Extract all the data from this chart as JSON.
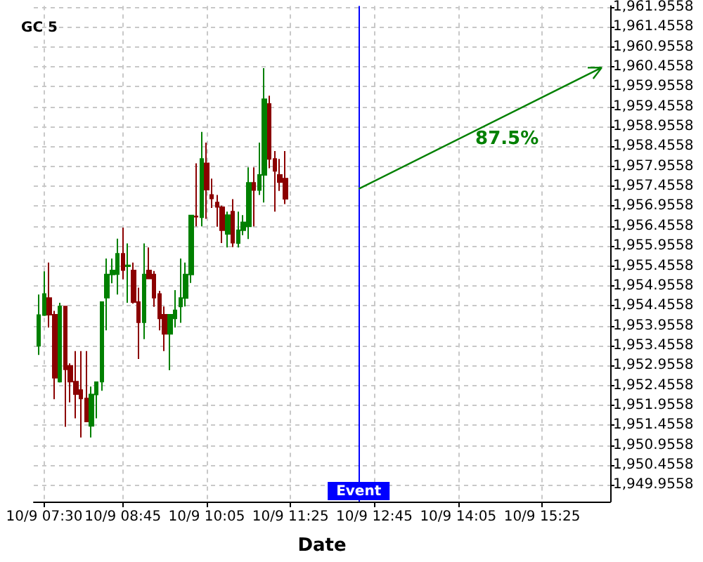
{
  "chart_data": {
    "type": "candlestick",
    "title": "GC 5",
    "xlabel": "Date",
    "x": [
      "--09-10T07:25",
      "--09-10T07:30",
      "--09-10T07:35",
      "--09-10T07:40",
      "--09-10T07:45",
      "--09-10T07:50",
      "--09-10T07:55",
      "--09-10T08:00",
      "--09-10T08:05",
      "--09-10T08:10",
      "--09-10T08:15",
      "--09-10T08:20",
      "--09-10T08:25",
      "--09-10T08:30",
      "--09-10T08:35",
      "--09-10T08:40",
      "--09-10T08:45",
      "--09-10T08:50",
      "--09-10T08:55",
      "--09-10T09:00",
      "--09-10T09:05",
      "--09-10T09:10",
      "--09-10T09:15",
      "--09-10T09:20",
      "--09-10T09:25",
      "--09-10T09:30",
      "--09-10T09:35",
      "--09-10T09:40",
      "--09-10T09:45",
      "--09-10T09:50",
      "--09-10T09:55",
      "--09-10T10:00",
      "--09-10T10:05",
      "--09-10T10:10",
      "--09-10T10:15",
      "--09-10T10:20",
      "--09-10T10:25",
      "--09-10T10:30",
      "--09-10T10:35",
      "--09-10T10:40",
      "--09-10T10:45",
      "--09-10T10:50",
      "--09-10T10:55",
      "--09-10T11:00",
      "--09-10T11:05",
      "--09-10T11:10",
      "--09-10T11:15",
      "--09-10T11:20"
    ],
    "ohlc": [
      [
        1953.45,
        1954.74,
        1953.22,
        1954.22
      ],
      [
        1954.22,
        1955.32,
        1954.2,
        1954.75
      ],
      [
        1954.65,
        1955.54,
        1953.91,
        1954.23
      ],
      [
        1954.23,
        1954.33,
        1952.11,
        1952.65
      ],
      [
        1952.55,
        1954.53,
        1952.53,
        1954.44
      ],
      [
        1954.44,
        1954.44,
        1951.42,
        1952.86
      ],
      [
        1952.95,
        1953.01,
        1952.03,
        1952.55
      ],
      [
        1952.55,
        1953.32,
        1951.63,
        1952.24
      ],
      [
        1952.34,
        1953.32,
        1951.15,
        1952.13
      ],
      [
        1952.13,
        1953.32,
        1951.54,
        1951.55
      ],
      [
        1951.44,
        1952.43,
        1951.15,
        1952.23
      ],
      [
        1952.23,
        1952.54,
        1951.63,
        1952.54
      ],
      [
        1952.55,
        1954.55,
        1952.32,
        1954.55
      ],
      [
        1954.66,
        1955.64,
        1953.84,
        1955.24
      ],
      [
        1955.24,
        1955.64,
        1955.02,
        1955.34
      ],
      [
        1955.25,
        1956.14,
        1954.74,
        1955.76
      ],
      [
        1955.76,
        1956.42,
        1955.12,
        1955.35
      ],
      [
        1955.45,
        1956.02,
        1954.53,
        1955.47
      ],
      [
        1955.34,
        1955.54,
        1954.51,
        1954.55
      ],
      [
        1954.55,
        1954.91,
        1953.12,
        1954.04
      ],
      [
        1954.04,
        1956.02,
        1953.62,
        1955.24
      ],
      [
        1955.34,
        1955.92,
        1955.13,
        1955.14
      ],
      [
        1955.24,
        1955.33,
        1954.43,
        1954.66
      ],
      [
        1954.75,
        1954.83,
        1953.84,
        1954.14
      ],
      [
        1954.23,
        1954.44,
        1953.32,
        1953.75
      ],
      [
        1953.75,
        1954.23,
        1952.84,
        1954.23
      ],
      [
        1954.14,
        1954.85,
        1953.91,
        1954.34
      ],
      [
        1954.44,
        1955.64,
        1954.03,
        1954.65
      ],
      [
        1954.65,
        1955.54,
        1954.44,
        1955.24
      ],
      [
        1955.24,
        1956.72,
        1955.03,
        1956.72
      ],
      [
        1956.7,
        1958.03,
        1956.45,
        1956.69
      ],
      [
        1956.68,
        1958.82,
        1956.45,
        1958.14
      ],
      [
        1958.03,
        1958.55,
        1956.64,
        1957.37
      ],
      [
        1957.24,
        1957.65,
        1956.91,
        1957.15
      ],
      [
        1957.05,
        1957.24,
        1956.44,
        1956.94
      ],
      [
        1956.93,
        1956.97,
        1956.03,
        1956.35
      ],
      [
        1956.26,
        1956.82,
        1955.92,
        1956.73
      ],
      [
        1956.82,
        1957.13,
        1955.93,
        1956.04
      ],
      [
        1956.03,
        1956.82,
        1955.92,
        1956.35
      ],
      [
        1956.35,
        1956.73,
        1956.23,
        1956.55
      ],
      [
        1956.45,
        1957.93,
        1956.13,
        1957.54
      ],
      [
        1957.54,
        1957.93,
        1956.45,
        1957.36
      ],
      [
        1957.36,
        1958.55,
        1957.24,
        1957.74
      ],
      [
        1957.74,
        1960.42,
        1957.05,
        1959.64
      ],
      [
        1959.52,
        1959.73,
        1957.91,
        1958.14
      ],
      [
        1958.14,
        1958.34,
        1956.82,
        1957.84
      ],
      [
        1957.74,
        1958.14,
        1957.34,
        1957.56
      ],
      [
        1957.65,
        1958.34,
        1957.01,
        1957.14
      ]
    ],
    "colors": [
      "#008000",
      "#008000",
      "#8b0000",
      "#8b0000",
      "#008000",
      "#8b0000",
      "#8b0000",
      "#8b0000",
      "#8b0000",
      "#8b0000",
      "#008000",
      "#008000",
      "#008000",
      "#008000",
      "#008000",
      "#008000",
      "#8b0000",
      "#008000",
      "#8b0000",
      "#8b0000",
      "#008000",
      "#8b0000",
      "#8b0000",
      "#8b0000",
      "#8b0000",
      "#008000",
      "#008000",
      "#008000",
      "#008000",
      "#008000",
      "#8b0000",
      "#008000",
      "#8b0000",
      "#8b0000",
      "#8b0000",
      "#8b0000",
      "#008000",
      "#8b0000",
      "#008000",
      "#008000",
      "#008000",
      "#8b0000",
      "#008000",
      "#008000",
      "#8b0000",
      "#8b0000",
      "#8b0000",
      "#8b0000"
    ],
    "annotations": [
      "87.5%"
    ],
    "ref_lines": [
      {
        "axis": "x",
        "value": "--09-10T12:30",
        "label": "Event",
        "color": "#0000ff"
      }
    ],
    "xlim": [
      "--09-10T07:20",
      "--09-10T16:30"
    ],
    "xticks": [
      {
        "value": "--09-10T07:30",
        "label": "10/9 07:30"
      },
      {
        "value": "--09-10T08:45",
        "label": "10/9 08:45"
      },
      {
        "value": "--09-10T10:05",
        "label": "10/9 10:05"
      },
      {
        "value": "--09-10T11:25",
        "label": "10/9 11:25"
      },
      {
        "value": "--09-10T12:45",
        "label": "10/9 12:45"
      },
      {
        "value": "--09-10T14:05",
        "label": "10/9 14:05"
      },
      {
        "value": "--09-10T15:25",
        "label": "10/9 15:25"
      }
    ],
    "ylim": [
      1949.54,
      1961.98
    ],
    "yticks": [
      {
        "value": 1949.9558,
        "label": "1,949.9558"
      },
      {
        "value": 1950.4558,
        "label": "1,950.4558"
      },
      {
        "value": 1950.9558,
        "label": "1,950.9558"
      },
      {
        "value": 1951.4558,
        "label": "1,951.4558"
      },
      {
        "value": 1951.9558,
        "label": "1,951.9558"
      },
      {
        "value": 1952.4558,
        "label": "1,952.4558"
      },
      {
        "value": 1952.9558,
        "label": "1,952.9558"
      },
      {
        "value": 1953.4558,
        "label": "1,953.4558"
      },
      {
        "value": 1953.9558,
        "label": "1,953.9558"
      },
      {
        "value": 1954.4558,
        "label": "1,954.4558"
      },
      {
        "value": 1954.9558,
        "label": "1,954.9558"
      },
      {
        "value": 1955.4558,
        "label": "1,955.4558"
      },
      {
        "value": 1955.9558,
        "label": "1,955.9558"
      },
      {
        "value": 1956.4558,
        "label": "1,956.4558"
      },
      {
        "value": 1956.9558,
        "label": "1,956.9558"
      },
      {
        "value": 1957.4558,
        "label": "1,957.4558"
      },
      {
        "value": 1957.9558,
        "label": "1,957.9558"
      },
      {
        "value": 1958.4558,
        "label": "1,958.4558"
      },
      {
        "value": 1958.9558,
        "label": "1,958.9558"
      },
      {
        "value": 1959.4558,
        "label": "1,959.4558"
      },
      {
        "value": 1959.9558,
        "label": "1,959.9558"
      },
      {
        "value": 1960.4558,
        "label": "1,960.4558"
      },
      {
        "value": 1960.9558,
        "label": "1,960.9558"
      },
      {
        "value": 1961.4558,
        "label": "1,961.4558"
      },
      {
        "value": 1961.9558,
        "label": "1,961.9558"
      }
    ],
    "grid": true
  }
}
